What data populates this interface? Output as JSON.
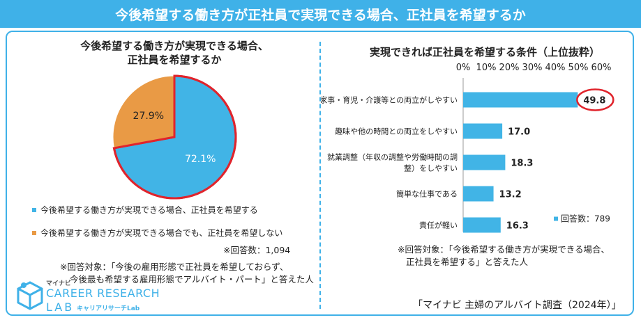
{
  "banner": {
    "title": "今後希望する働き方が正社員で実現できる場合、正社員を希望するか"
  },
  "pie": {
    "title_line1": "今後希望する働き方が実現できる場合、",
    "title_line2": "正社員を希望するか",
    "legend": [
      {
        "label": "今後希望する働き方が実現できる場合、正社員を希望する",
        "color": "#41b4e6"
      },
      {
        "label": "今後希望する働き方が実現できる場合でも、正社員を希望しない",
        "color": "#e99a45"
      }
    ],
    "respondents": "※回答数：1,094",
    "target_line1": "※回答対象：「今後の雇用形態で正社員を希望しておらず、",
    "target_line2": "今後最も希望する雇用形態でアルバイト・パート」と答えた人"
  },
  "bars": {
    "title": "実現できれば正社員を希望する条件（上位抜粋）",
    "respondents": "回答数：789",
    "target_line1": "※回答対象：「今後希望する働き方が実現できる場合、",
    "target_line2": "正社員を希望する」と答えた人"
  },
  "chart_data": [
    {
      "type": "pie",
      "title": "今後希望する働き方が実現できる場合、正社員を希望するか",
      "slices": [
        {
          "label": "今後希望する働き方が実現できる場合、正社員を希望する",
          "value": 72.1,
          "display": "72.1%",
          "color": "#41b4e6"
        },
        {
          "label": "今後希望する働き方が実現できる場合でも、正社員を希望しない",
          "value": 27.9,
          "display": "27.9%",
          "color": "#e99a45"
        }
      ],
      "highlight_color": "#e0242c"
    },
    {
      "type": "bar",
      "orientation": "horizontal",
      "title": "実現できれば正社員を希望する条件（上位抜粋）",
      "categories": [
        "家事・育児・介護等との両立がしやすい",
        "趣味や他の時間との両立をしやすい",
        "就業調整（年収の調整や労働時間の調整）をしやすい",
        "簡単な仕事である",
        "責任が軽い"
      ],
      "category_lines": [
        [
          "家事・育児・介護等との両立がしやすい"
        ],
        [
          "趣味や他の時間との両立をしやすい"
        ],
        [
          "就業調整（年収の調整や労働時間の調",
          "整）をしやすい"
        ],
        [
          "簡単な仕事である"
        ],
        [
          "責任が軽い"
        ]
      ],
      "values": [
        49.8,
        17.0,
        18.3,
        13.2,
        16.3
      ],
      "value_labels": [
        "49.8",
        "17.0",
        "18.3",
        "13.2",
        "16.3"
      ],
      "xlim": [
        0,
        60
      ],
      "ticks": [
        0,
        10,
        20,
        30,
        40,
        50,
        60
      ],
      "tick_labels": [
        "0%",
        "10%",
        "20%",
        "30%",
        "40%",
        "50%",
        "60%"
      ],
      "highlight_index": 0,
      "bar_color": "#41b4e6",
      "highlight_color": "#e0242c",
      "grid": false
    }
  ],
  "brand": {
    "small": "マイナビ",
    "main": "CAREER RESEARCH",
    "lab": "LAB",
    "kana": "キャリアリサーチLab"
  },
  "source": "「マイナビ 主婦のアルバイト調査（2024年）」"
}
